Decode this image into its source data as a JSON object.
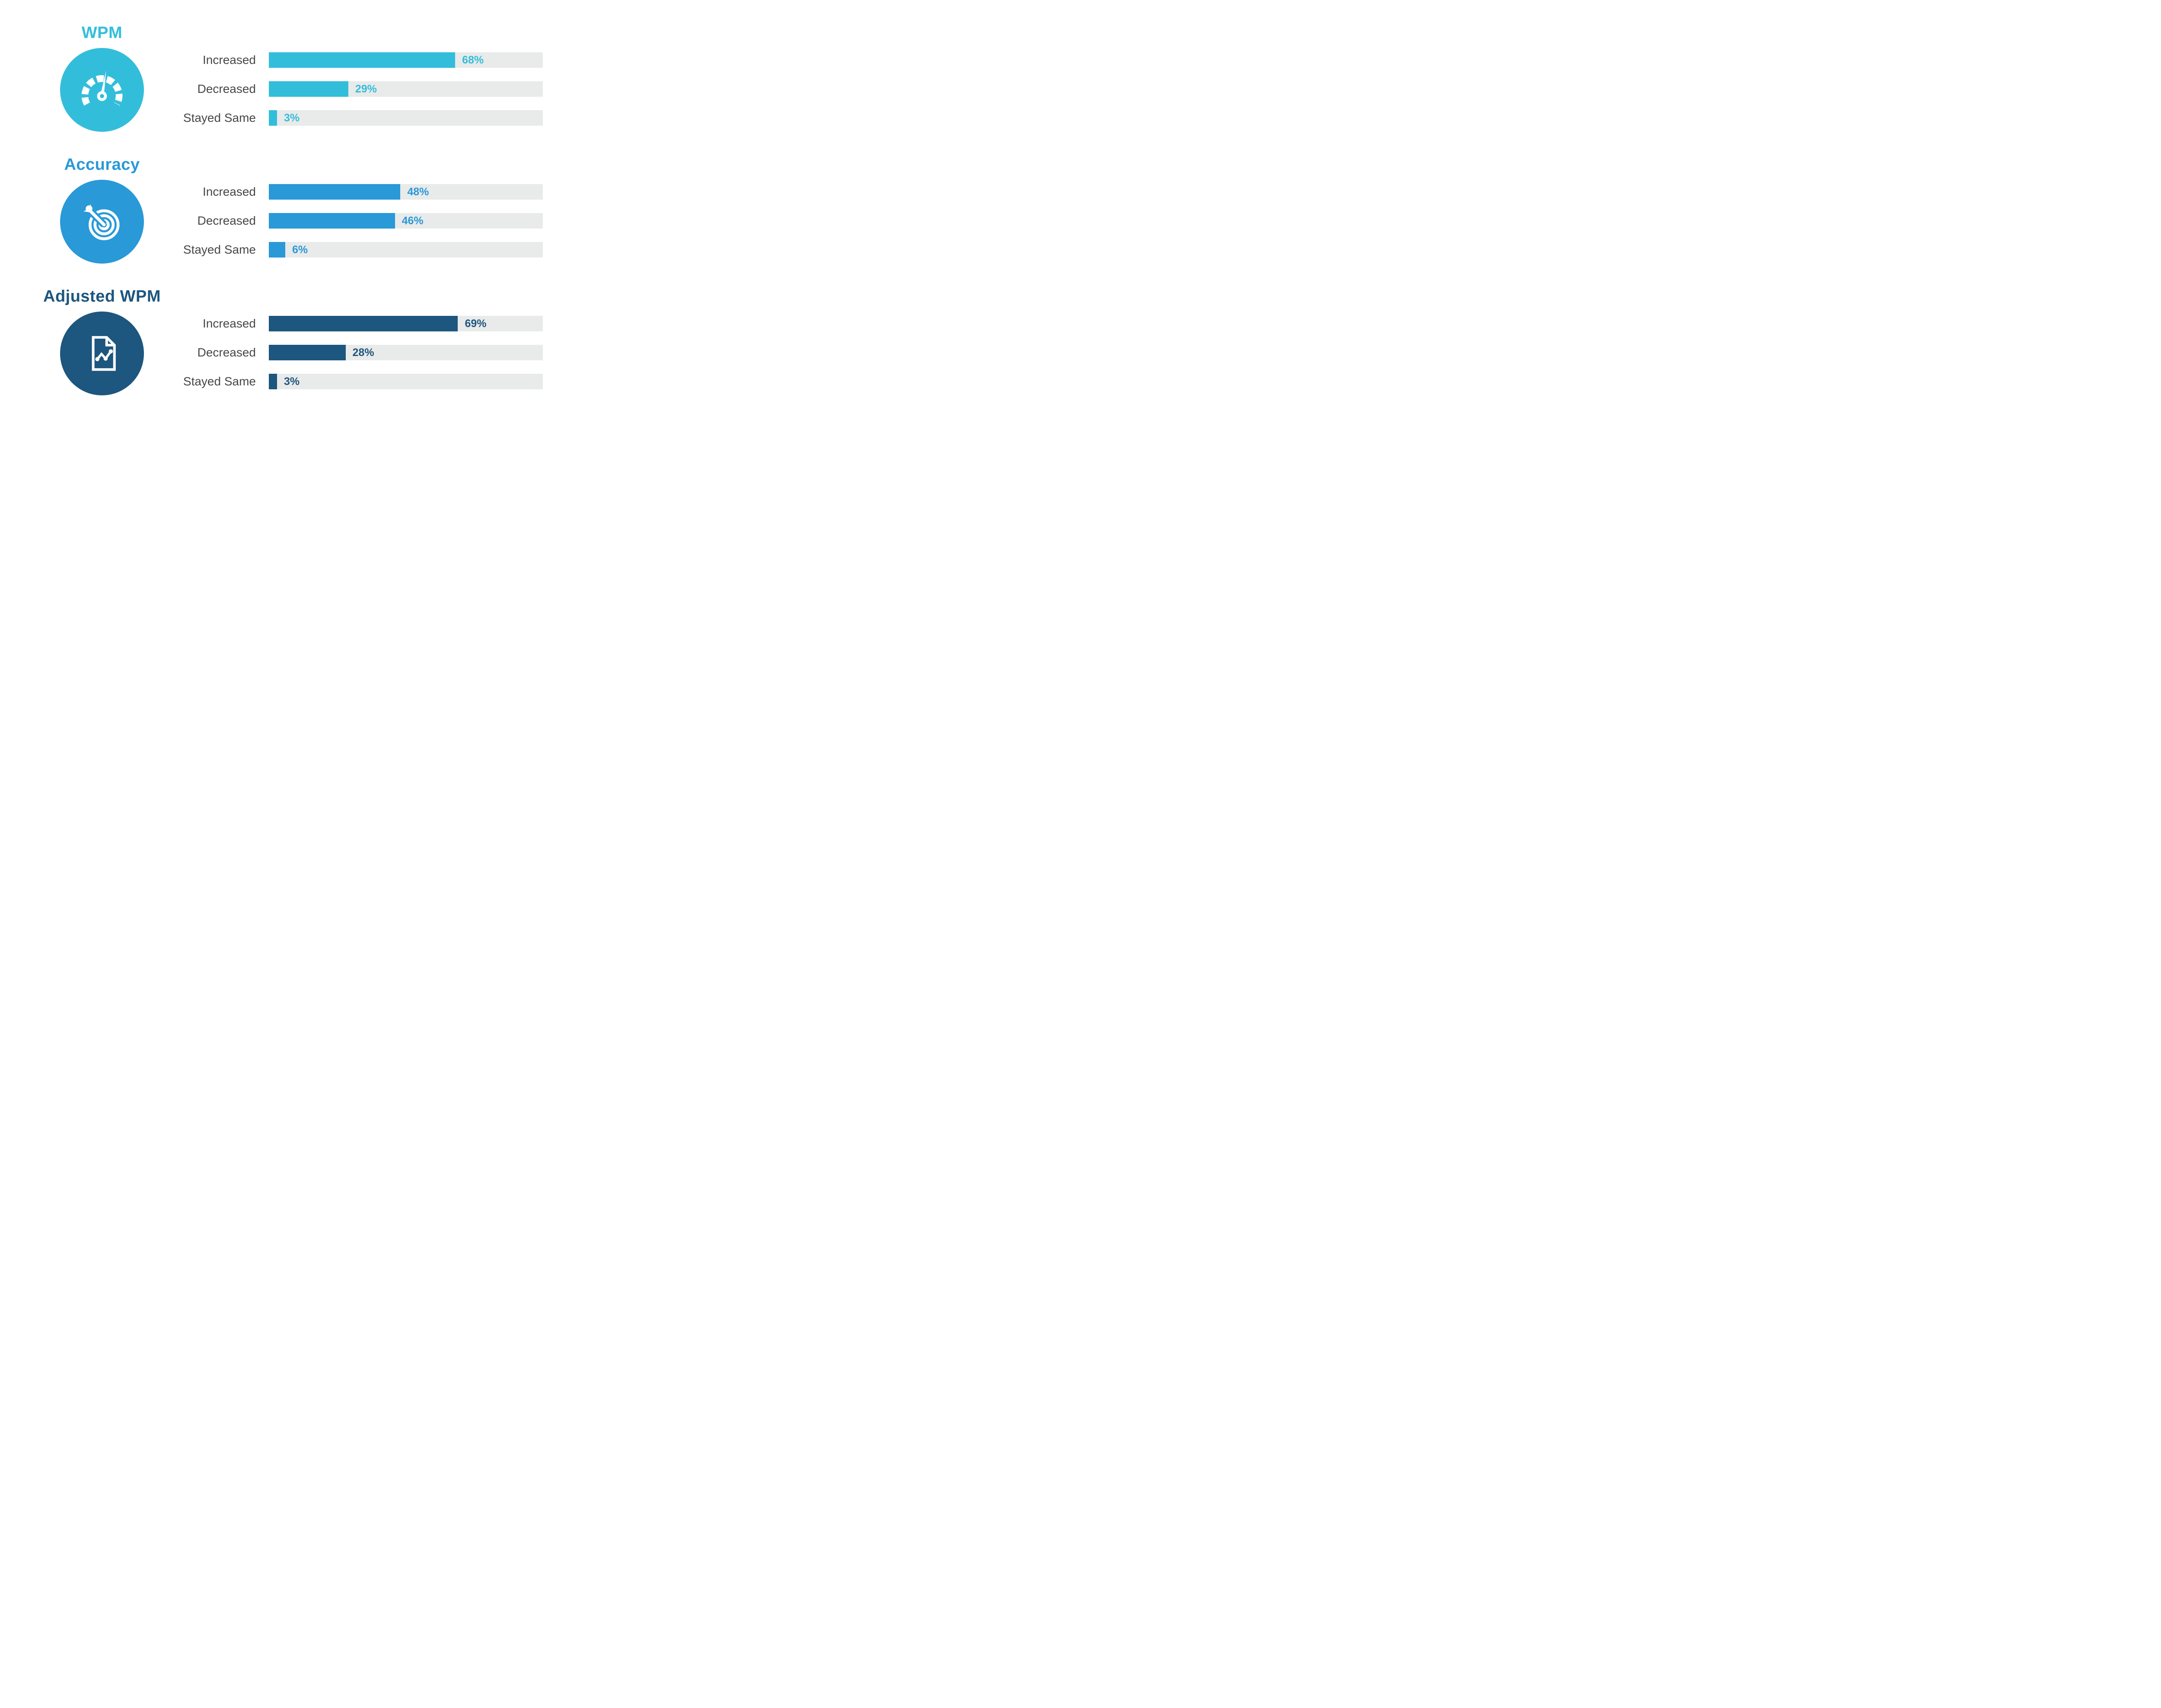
{
  "page": {
    "background": "#ffffff",
    "track_color": "#e9eaea",
    "label_color": "#474747"
  },
  "groups": [
    {
      "id": "wpm",
      "title": "WPM",
      "accent": "#32bedb",
      "icon": "speedometer-icon",
      "rows": [
        {
          "label": "Increased",
          "value": 68,
          "value_label": "68%"
        },
        {
          "label": "Decreased",
          "value": 29,
          "value_label": "29%"
        },
        {
          "label": "Stayed Same",
          "value": 3,
          "value_label": "3%"
        }
      ]
    },
    {
      "id": "accuracy",
      "title": "Accuracy",
      "accent": "#2999d8",
      "icon": "target-icon",
      "rows": [
        {
          "label": "Increased",
          "value": 48,
          "value_label": "48%"
        },
        {
          "label": "Decreased",
          "value": 46,
          "value_label": "46%"
        },
        {
          "label": "Stayed Same",
          "value": 6,
          "value_label": "6%"
        }
      ]
    },
    {
      "id": "adjusted-wpm",
      "title": "Adjusted WPM",
      "accent": "#1d567e",
      "icon": "document-chart-icon",
      "rows": [
        {
          "label": "Increased",
          "value": 69,
          "value_label": "69%"
        },
        {
          "label": "Decreased",
          "value": 28,
          "value_label": "28%"
        },
        {
          "label": "Stayed Same",
          "value": 3,
          "value_label": "3%"
        }
      ]
    }
  ],
  "chart_data": {
    "type": "bar",
    "orientation": "horizontal",
    "unit": "percent",
    "categories": [
      "Increased",
      "Decreased",
      "Stayed Same"
    ],
    "series": [
      {
        "name": "WPM",
        "values": [
          68,
          29,
          3
        ],
        "color": "#32bedb"
      },
      {
        "name": "Accuracy",
        "values": [
          48,
          46,
          6
        ],
        "color": "#2999d8"
      },
      {
        "name": "Adjusted WPM",
        "values": [
          69,
          28,
          3
        ],
        "color": "#1d567e"
      }
    ],
    "xlim": [
      0,
      100
    ],
    "grid": false,
    "legend_position": "none",
    "value_label_format": "{value}%"
  }
}
